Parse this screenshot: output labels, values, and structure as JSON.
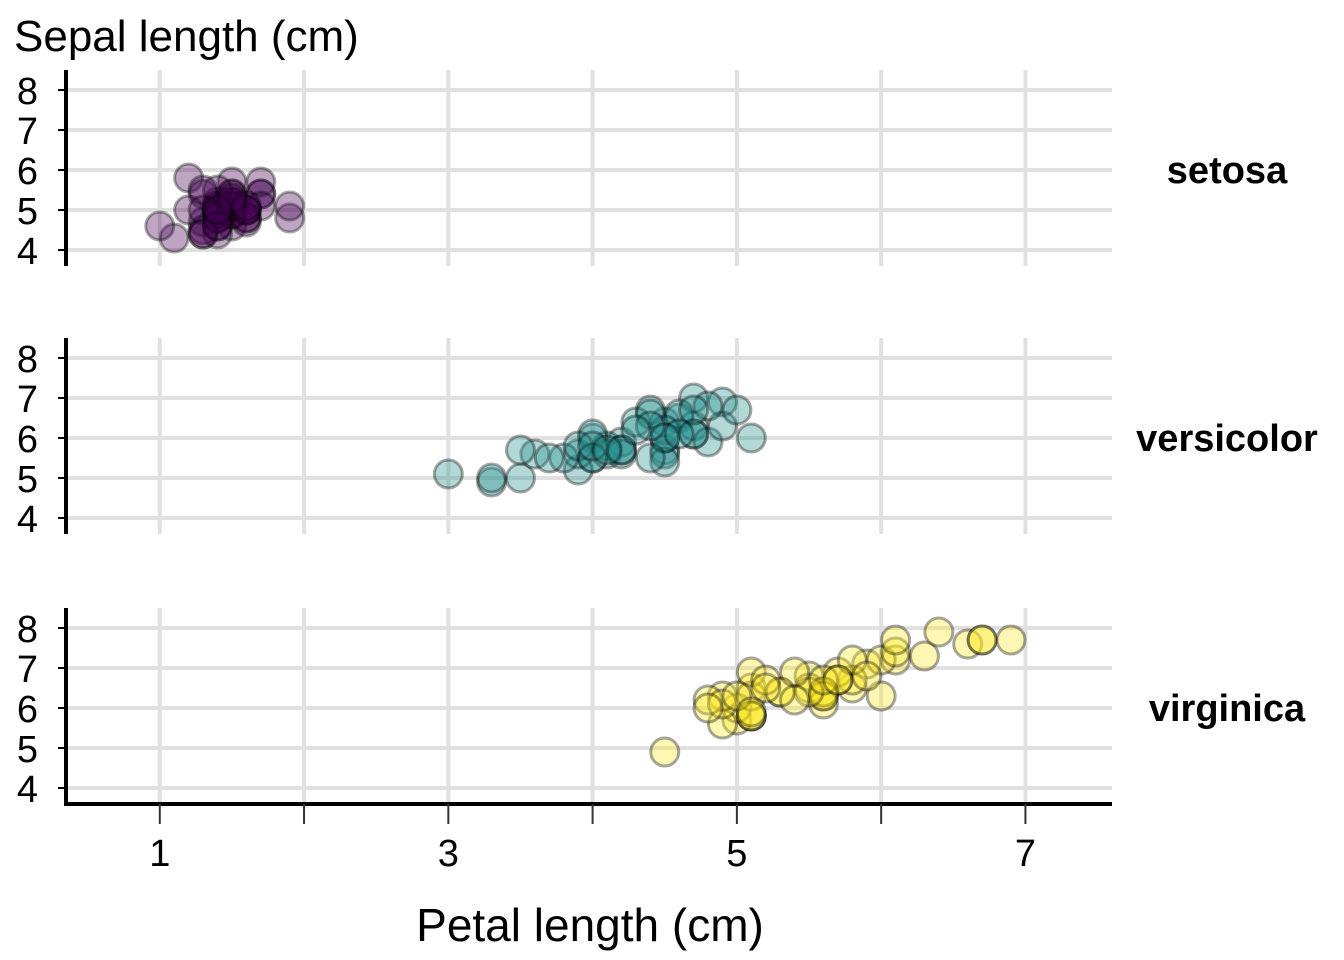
{
  "chart_data": {
    "type": "scatter",
    "ylabel": "Sepal length (cm)",
    "xlabel": "Petal length (cm)",
    "x_ticks": [
      1,
      3,
      5,
      7
    ],
    "x_gridlines": [
      1,
      2,
      3,
      4,
      5,
      6,
      7
    ],
    "xlim": [
      0.35,
      7.6
    ],
    "y_ticks": [
      4,
      5,
      6,
      7,
      8
    ],
    "ylim": [
      3.6,
      8.5
    ],
    "grid": true,
    "marker_alpha": 0.35,
    "panels": [
      {
        "name": "setosa",
        "color": "#440154",
        "points": [
          [
            1.4,
            5.1
          ],
          [
            1.4,
            4.9
          ],
          [
            1.3,
            4.7
          ],
          [
            1.5,
            4.6
          ],
          [
            1.4,
            5.0
          ],
          [
            1.7,
            5.4
          ],
          [
            1.4,
            4.6
          ],
          [
            1.5,
            5.0
          ],
          [
            1.4,
            4.4
          ],
          [
            1.5,
            4.9
          ],
          [
            1.5,
            5.4
          ],
          [
            1.6,
            4.8
          ],
          [
            1.4,
            4.8
          ],
          [
            1.1,
            4.3
          ],
          [
            1.2,
            5.8
          ],
          [
            1.5,
            5.7
          ],
          [
            1.3,
            5.4
          ],
          [
            1.4,
            5.1
          ],
          [
            1.7,
            5.7
          ],
          [
            1.5,
            5.1
          ],
          [
            1.7,
            5.4
          ],
          [
            1.5,
            5.1
          ],
          [
            1.0,
            4.6
          ],
          [
            1.7,
            5.1
          ],
          [
            1.9,
            4.8
          ],
          [
            1.6,
            5.0
          ],
          [
            1.6,
            5.0
          ],
          [
            1.5,
            5.2
          ],
          [
            1.4,
            5.2
          ],
          [
            1.6,
            4.7
          ],
          [
            1.6,
            4.8
          ],
          [
            1.5,
            5.4
          ],
          [
            1.5,
            5.2
          ],
          [
            1.4,
            5.5
          ],
          [
            1.5,
            4.9
          ],
          [
            1.2,
            5.0
          ],
          [
            1.3,
            5.5
          ],
          [
            1.4,
            4.9
          ],
          [
            1.3,
            4.4
          ],
          [
            1.5,
            5.1
          ],
          [
            1.3,
            5.0
          ],
          [
            1.3,
            4.5
          ],
          [
            1.3,
            4.4
          ],
          [
            1.6,
            5.0
          ],
          [
            1.9,
            5.1
          ],
          [
            1.4,
            4.8
          ],
          [
            1.6,
            5.1
          ],
          [
            1.4,
            4.6
          ],
          [
            1.5,
            5.3
          ],
          [
            1.4,
            5.0
          ]
        ]
      },
      {
        "name": "versicolor",
        "color": "#21908C",
        "points": [
          [
            4.7,
            7.0
          ],
          [
            4.5,
            6.4
          ],
          [
            4.9,
            6.9
          ],
          [
            4.0,
            5.5
          ],
          [
            4.6,
            6.5
          ],
          [
            4.5,
            5.7
          ],
          [
            4.7,
            6.3
          ],
          [
            3.3,
            4.9
          ],
          [
            4.6,
            6.6
          ],
          [
            3.9,
            5.2
          ],
          [
            3.5,
            5.0
          ],
          [
            4.2,
            5.9
          ],
          [
            4.0,
            6.0
          ],
          [
            4.7,
            6.1
          ],
          [
            3.6,
            5.6
          ],
          [
            4.4,
            6.7
          ],
          [
            4.5,
            5.6
          ],
          [
            4.1,
            5.8
          ],
          [
            4.5,
            6.2
          ],
          [
            3.9,
            5.6
          ],
          [
            4.8,
            5.9
          ],
          [
            4.0,
            6.1
          ],
          [
            4.9,
            6.3
          ],
          [
            4.7,
            6.1
          ],
          [
            4.3,
            6.4
          ],
          [
            4.4,
            6.6
          ],
          [
            4.8,
            6.8
          ],
          [
            5.0,
            6.7
          ],
          [
            4.5,
            6.0
          ],
          [
            3.5,
            5.7
          ],
          [
            3.8,
            5.5
          ],
          [
            3.7,
            5.5
          ],
          [
            3.9,
            5.8
          ],
          [
            5.1,
            6.0
          ],
          [
            4.5,
            5.4
          ],
          [
            4.5,
            6.0
          ],
          [
            4.7,
            6.7
          ],
          [
            4.4,
            6.3
          ],
          [
            4.1,
            5.6
          ],
          [
            4.0,
            5.5
          ],
          [
            4.4,
            5.5
          ],
          [
            4.6,
            6.1
          ],
          [
            4.0,
            5.8
          ],
          [
            3.3,
            5.0
          ],
          [
            4.2,
            5.6
          ],
          [
            4.2,
            5.7
          ],
          [
            4.2,
            5.7
          ],
          [
            4.3,
            6.2
          ],
          [
            3.0,
            5.1
          ],
          [
            4.1,
            5.7
          ]
        ]
      },
      {
        "name": "virginica",
        "color": "#FDE725",
        "points": [
          [
            6.0,
            6.3
          ],
          [
            5.1,
            5.8
          ],
          [
            5.9,
            7.1
          ],
          [
            5.6,
            6.3
          ],
          [
            5.8,
            6.5
          ],
          [
            6.6,
            7.6
          ],
          [
            4.5,
            4.9
          ],
          [
            6.3,
            7.3
          ],
          [
            5.8,
            6.7
          ],
          [
            6.1,
            7.2
          ],
          [
            5.1,
            6.5
          ],
          [
            5.3,
            6.4
          ],
          [
            5.5,
            6.8
          ],
          [
            5.0,
            5.7
          ],
          [
            5.1,
            5.8
          ],
          [
            5.3,
            6.4
          ],
          [
            5.5,
            6.5
          ],
          [
            6.7,
            7.7
          ],
          [
            6.9,
            7.7
          ],
          [
            5.0,
            6.0
          ],
          [
            5.7,
            6.9
          ],
          [
            4.9,
            5.6
          ],
          [
            6.7,
            7.7
          ],
          [
            4.9,
            6.3
          ],
          [
            5.7,
            6.7
          ],
          [
            6.0,
            7.2
          ],
          [
            4.8,
            6.2
          ],
          [
            4.9,
            6.1
          ],
          [
            5.6,
            6.4
          ],
          [
            5.8,
            7.2
          ],
          [
            6.1,
            7.4
          ],
          [
            6.4,
            7.9
          ],
          [
            5.6,
            6.4
          ],
          [
            5.1,
            6.3
          ],
          [
            5.6,
            6.1
          ],
          [
            6.1,
            7.7
          ],
          [
            5.6,
            6.3
          ],
          [
            5.5,
            6.4
          ],
          [
            4.8,
            6.0
          ],
          [
            5.4,
            6.9
          ],
          [
            5.6,
            6.7
          ],
          [
            5.1,
            6.9
          ],
          [
            5.1,
            5.8
          ],
          [
            5.9,
            6.8
          ],
          [
            5.7,
            6.7
          ],
          [
            5.2,
            6.7
          ],
          [
            5.0,
            6.3
          ],
          [
            5.2,
            6.5
          ],
          [
            5.4,
            6.2
          ],
          [
            5.1,
            5.9
          ]
        ]
      }
    ]
  }
}
